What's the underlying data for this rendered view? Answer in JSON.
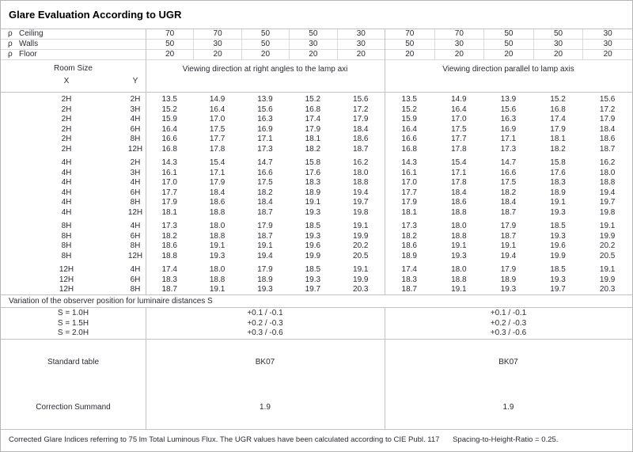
{
  "title": "Glare Evaluation According to UGR",
  "reflectance_rows": [
    {
      "symbol": "ρ",
      "label": "Ceiling",
      "values": [
        "70",
        "70",
        "50",
        "50",
        "30",
        "70",
        "70",
        "50",
        "50",
        "30"
      ]
    },
    {
      "symbol": "ρ",
      "label": "Walls",
      "values": [
        "50",
        "30",
        "50",
        "30",
        "30",
        "50",
        "30",
        "50",
        "30",
        "30"
      ]
    },
    {
      "symbol": "ρ",
      "label": "Floor",
      "values": [
        "20",
        "20",
        "20",
        "20",
        "20",
        "20",
        "20",
        "20",
        "20",
        "20"
      ]
    }
  ],
  "header": {
    "room_size_label": "Room Size",
    "x_label": "X",
    "y_label": "Y",
    "left_heading": "Viewing direction at right angles to the lamp axi",
    "right_heading": "Viewing direction parallel to lamp axis"
  },
  "ugr_groups": [
    {
      "rows": [
        {
          "x": "2H",
          "y": "2H",
          "left": [
            "13.5",
            "14.9",
            "13.9",
            "15.2",
            "15.6"
          ],
          "right": [
            "13.5",
            "14.9",
            "13.9",
            "15.2",
            "15.6"
          ]
        },
        {
          "x": "2H",
          "y": "3H",
          "left": [
            "15.2",
            "16.4",
            "15.6",
            "16.8",
            "17.2"
          ],
          "right": [
            "15.2",
            "16.4",
            "15.6",
            "16.8",
            "17.2"
          ]
        },
        {
          "x": "2H",
          "y": "4H",
          "left": [
            "15.9",
            "17.0",
            "16.3",
            "17.4",
            "17.9"
          ],
          "right": [
            "15.9",
            "17.0",
            "16.3",
            "17.4",
            "17.9"
          ]
        },
        {
          "x": "2H",
          "y": "6H",
          "left": [
            "16.4",
            "17.5",
            "16.9",
            "17.9",
            "18.4"
          ],
          "right": [
            "16.4",
            "17.5",
            "16.9",
            "17.9",
            "18.4"
          ]
        },
        {
          "x": "2H",
          "y": "8H",
          "left": [
            "16.6",
            "17.7",
            "17.1",
            "18.1",
            "18.6"
          ],
          "right": [
            "16.6",
            "17.7",
            "17.1",
            "18.1",
            "18.6"
          ]
        },
        {
          "x": "2H",
          "y": "12H",
          "left": [
            "16.8",
            "17.8",
            "17.3",
            "18.2",
            "18.7"
          ],
          "right": [
            "16.8",
            "17.8",
            "17.3",
            "18.2",
            "18.7"
          ]
        }
      ]
    },
    {
      "rows": [
        {
          "x": "4H",
          "y": "2H",
          "left": [
            "14.3",
            "15.4",
            "14.7",
            "15.8",
            "16.2"
          ],
          "right": [
            "14.3",
            "15.4",
            "14.7",
            "15.8",
            "16.2"
          ]
        },
        {
          "x": "4H",
          "y": "3H",
          "left": [
            "16.1",
            "17.1",
            "16.6",
            "17.6",
            "18.0"
          ],
          "right": [
            "16.1",
            "17.1",
            "16.6",
            "17.6",
            "18.0"
          ]
        },
        {
          "x": "4H",
          "y": "4H",
          "left": [
            "17.0",
            "17.9",
            "17.5",
            "18.3",
            "18.8"
          ],
          "right": [
            "17.0",
            "17.8",
            "17.5",
            "18.3",
            "18.8"
          ]
        },
        {
          "x": "4H",
          "y": "6H",
          "left": [
            "17.7",
            "18.4",
            "18.2",
            "18.9",
            "19.4"
          ],
          "right": [
            "17.7",
            "18.4",
            "18.2",
            "18.9",
            "19.4"
          ]
        },
        {
          "x": "4H",
          "y": "8H",
          "left": [
            "17.9",
            "18.6",
            "18.4",
            "19.1",
            "19.7"
          ],
          "right": [
            "17.9",
            "18.6",
            "18.4",
            "19.1",
            "19.7"
          ]
        },
        {
          "x": "4H",
          "y": "12H",
          "left": [
            "18.1",
            "18.8",
            "18.7",
            "19.3",
            "19.8"
          ],
          "right": [
            "18.1",
            "18.8",
            "18.7",
            "19.3",
            "19.8"
          ]
        }
      ]
    },
    {
      "rows": [
        {
          "x": "8H",
          "y": "4H",
          "left": [
            "17.3",
            "18.0",
            "17.9",
            "18.5",
            "19.1"
          ],
          "right": [
            "17.3",
            "18.0",
            "17.9",
            "18.5",
            "19.1"
          ]
        },
        {
          "x": "8H",
          "y": "6H",
          "left": [
            "18.2",
            "18.8",
            "18.7",
            "19.3",
            "19.9"
          ],
          "right": [
            "18.2",
            "18.8",
            "18.7",
            "19.3",
            "19.9"
          ]
        },
        {
          "x": "8H",
          "y": "8H",
          "left": [
            "18.6",
            "19.1",
            "19.1",
            "19.6",
            "20.2"
          ],
          "right": [
            "18.6",
            "19.1",
            "19.1",
            "19.6",
            "20.2"
          ]
        },
        {
          "x": "8H",
          "y": "12H",
          "left": [
            "18.8",
            "19.3",
            "19.4",
            "19.9",
            "20.5"
          ],
          "right": [
            "18.9",
            "19.3",
            "19.4",
            "19.9",
            "20.5"
          ]
        }
      ]
    },
    {
      "rows": [
        {
          "x": "12H",
          "y": "4H",
          "left": [
            "17.4",
            "18.0",
            "17.9",
            "18.5",
            "19.1"
          ],
          "right": [
            "17.4",
            "18.0",
            "17.9",
            "18.5",
            "19.1"
          ]
        },
        {
          "x": "12H",
          "y": "6H",
          "left": [
            "18.3",
            "18.8",
            "18.9",
            "19.3",
            "19.9"
          ],
          "right": [
            "18.3",
            "18.8",
            "18.9",
            "19.3",
            "19.9"
          ]
        },
        {
          "x": "12H",
          "y": "8H",
          "left": [
            "18.7",
            "19.1",
            "19.3",
            "19.7",
            "20.3"
          ],
          "right": [
            "18.7",
            "19.1",
            "19.3",
            "19.7",
            "20.3"
          ]
        }
      ]
    }
  ],
  "variation_note": "Variation of the observer position for luminaire distances S",
  "s_rows": [
    {
      "label": "S = 1.0H",
      "left": "+0.1 / -0.1",
      "right": "+0.1 / -0.1"
    },
    {
      "label": "S = 1.5H",
      "left": "+0.2 / -0.3",
      "right": "+0.2 / -0.3"
    },
    {
      "label": "S = 2.0H",
      "left": "+0.3 / -0.6",
      "right": "+0.3 / -0.6"
    }
  ],
  "summary_rows": [
    {
      "label": "Standard table",
      "left": "BK07",
      "right": "BK07"
    },
    {
      "label": "Correction Summand",
      "left": "1.9",
      "right": "1.9"
    }
  ],
  "footer": {
    "note": "Corrected Glare Indices referring to 75 lm Total Luminous Flux. The UGR values have been calculated according to CIE Publ. 117",
    "ratio": "Spacing-to-Height-Ratio = 0.25."
  },
  "colors": {
    "grid_line": "#c2c2c2",
    "cell_line": "#d9d9d9",
    "text": "#2b2b33"
  }
}
